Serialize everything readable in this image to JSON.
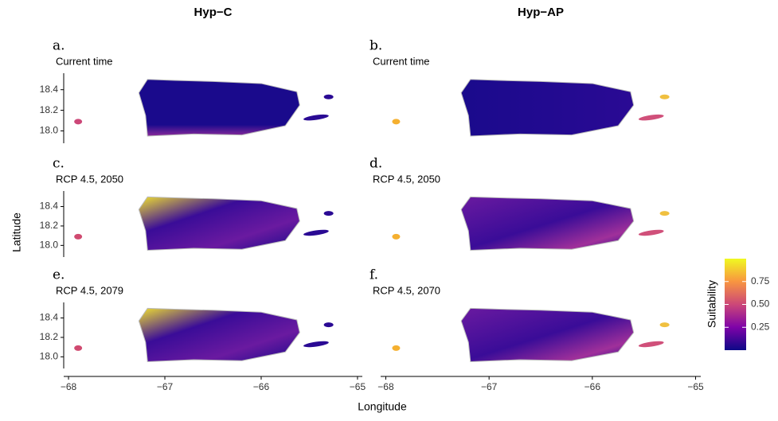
{
  "columns": [
    "Hyp−C",
    "Hyp−AP"
  ],
  "panels": [
    {
      "letter": "a.",
      "subtitle": "Current time"
    },
    {
      "letter": "b.",
      "subtitle": "Current time"
    },
    {
      "letter": "c.",
      "subtitle": "RCP 4.5, 2050"
    },
    {
      "letter": "d.",
      "subtitle": "RCP 4.5, 2050"
    },
    {
      "letter": "e.",
      "subtitle": "RCP 4.5, 2079"
    },
    {
      "letter": "f.",
      "subtitle": "RCP 4.5, 2070"
    }
  ],
  "x_axis": {
    "title": "Longitude",
    "xlim": [
      -68.05,
      -64.95
    ],
    "ticks": [
      {
        "value": -68,
        "label": "−68"
      },
      {
        "value": -67,
        "label": "−67"
      },
      {
        "value": -66,
        "label": "−66"
      },
      {
        "value": -65,
        "label": "−65"
      }
    ]
  },
  "y_axis": {
    "title": "Latitude",
    "ylim": [
      17.88,
      18.56
    ],
    "ticks": [
      {
        "value": 18,
        "label": "18.0"
      },
      {
        "value": 18.2,
        "label": "18.2"
      },
      {
        "value": 18.4,
        "label": "18.4"
      }
    ]
  },
  "colorbar": {
    "title": "Suitability",
    "lim": [
      0,
      1
    ],
    "ticks": [
      0.25,
      {
        "value": 0.5,
        "label": "0.50"
      },
      0.75
    ]
  }
}
